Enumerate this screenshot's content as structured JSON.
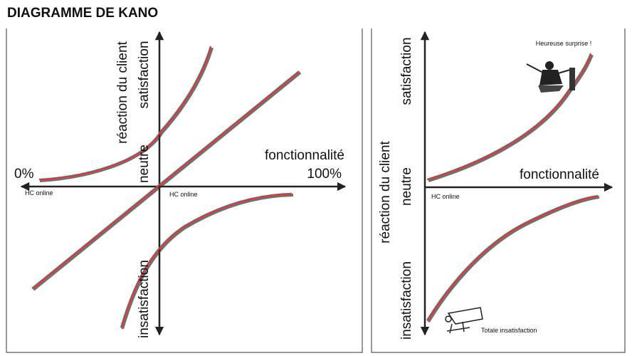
{
  "header": {
    "title": "DIAGRAMME DE KANO"
  },
  "left_panel": {
    "y_axis_label": "réaction du client",
    "top_label": "satisfaction",
    "middle_label": "neutre",
    "bottom_label": "insatisfaction",
    "x_axis_label": "fonctionnalité",
    "x_start": "0%",
    "x_end": "100%",
    "marker_left": "HC online",
    "marker_center": "HC online"
  },
  "right_panel": {
    "y_axis_label": "réaction du client",
    "top_label": "satisfaction",
    "middle_label": "neutre",
    "bottom_label": "insatisfaction",
    "x_axis_label": "fonctionnalité",
    "marker": "HC online",
    "annotation_top": "Heureuse surprise !",
    "annotation_bottom": "Totale insatisfaction"
  }
}
